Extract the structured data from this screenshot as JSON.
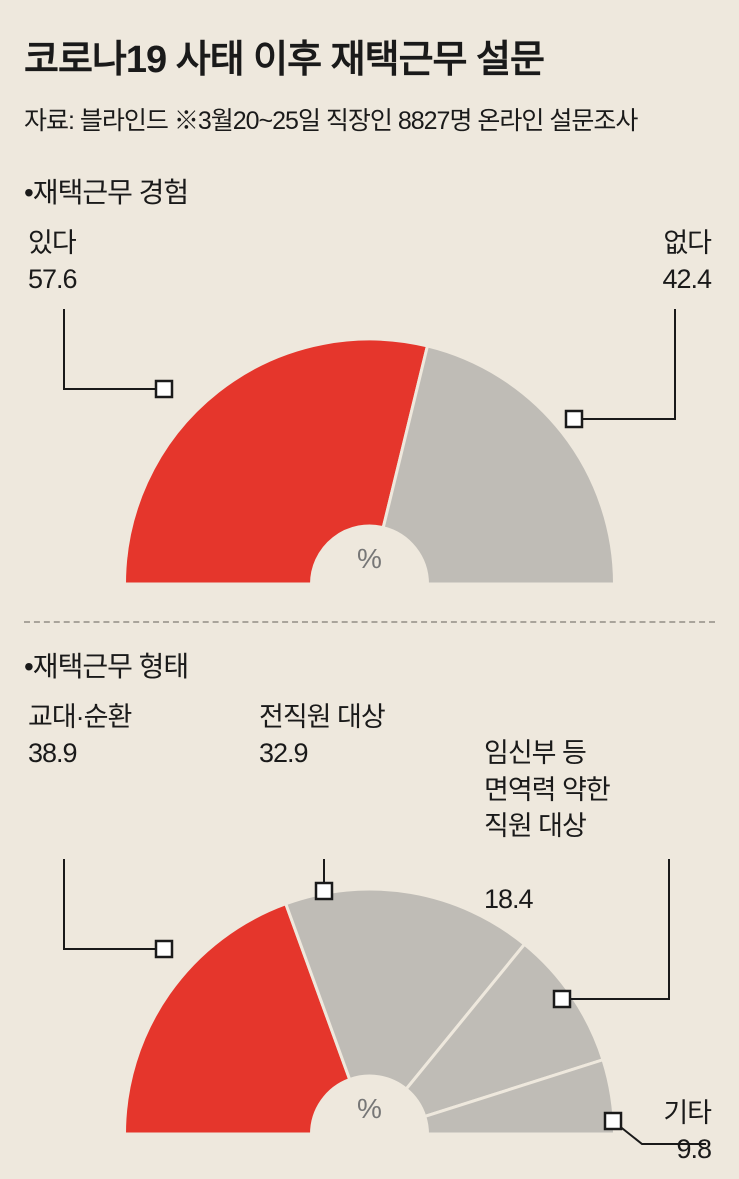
{
  "title": "코로나19 사태 이후 재택근무 설문",
  "subtitle": "자료: 블라인드  ※3월20~25일 직장인 8827명 온라인 설문조사",
  "percent_symbol": "%",
  "colors": {
    "background": "#eee8dd",
    "red": "#e5362c",
    "grey": "#bfbcb6",
    "slice_stroke": "#eee8dd",
    "text": "#1a1a1a",
    "pct": "#7d7b76",
    "divider": "#a9a49b"
  },
  "chart1": {
    "section_title": "•재택근무 경험",
    "type": "half-donut",
    "inner_radius": 58,
    "outer_radius": 245,
    "slices": [
      {
        "label": "있다",
        "value": 57.6,
        "color": "#e5362c"
      },
      {
        "label": "없다",
        "value": 42.4,
        "color": "#bfbcb6"
      }
    ]
  },
  "chart2": {
    "section_title": "•재택근무 형태",
    "type": "half-donut",
    "inner_radius": 58,
    "outer_radius": 245,
    "slices": [
      {
        "label": "교대·순환",
        "value": 38.9,
        "color": "#e5362c"
      },
      {
        "label": "전직원 대상",
        "value": 32.9,
        "color": "#bfbcb6"
      },
      {
        "label": "임신부 등\n면역력 약한\n직원 대상",
        "value": 18.4,
        "color": "#bfbcb6"
      },
      {
        "label": "기타",
        "value": 9.8,
        "color": "#bfbcb6"
      }
    ]
  }
}
